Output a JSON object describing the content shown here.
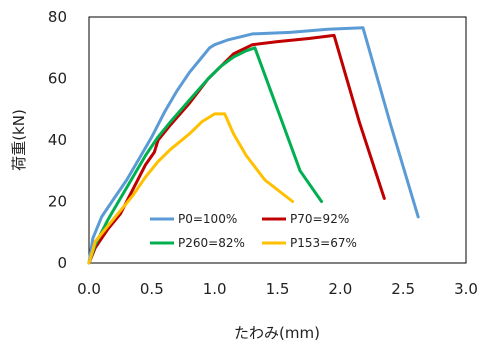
{
  "chart_data": {
    "type": "line",
    "xlabel": "たわみ(mm)",
    "ylabel": "荷重(kN)",
    "xlim": [
      0.0,
      3.0
    ],
    "ylim": [
      0,
      80
    ],
    "x_ticks": [
      "0.0",
      "0.5",
      "1.0",
      "1.5",
      "2.0",
      "2.5",
      "3.0"
    ],
    "y_ticks": [
      "0",
      "20",
      "40",
      "60",
      "80"
    ],
    "grid": false,
    "legend_position": "bottom-center inside plot",
    "series": [
      {
        "name": "P0=100%",
        "color": "#5B9BD5",
        "x": [
          0.0,
          0.03,
          0.1,
          0.2,
          0.3,
          0.4,
          0.5,
          0.6,
          0.7,
          0.8,
          0.9,
          0.96,
          1.0,
          1.1,
          1.3,
          1.6,
          1.9,
          2.18,
          2.4,
          2.62
        ],
        "y": [
          0,
          8,
          15,
          21,
          27,
          34,
          41,
          49,
          56,
          62,
          67,
          70,
          71,
          72.5,
          74.5,
          75,
          76,
          76.5,
          45,
          15
        ]
      },
      {
        "name": "P70=92%",
        "color": "#C00000",
        "x": [
          0.0,
          0.05,
          0.15,
          0.25,
          0.35,
          0.45,
          0.52,
          0.55,
          0.65,
          0.8,
          0.95,
          1.05,
          1.15,
          1.3,
          1.5,
          1.75,
          1.95,
          2.15,
          2.35
        ],
        "y": [
          0,
          5,
          11,
          16,
          24,
          32,
          36,
          40,
          45,
          52,
          60,
          64,
          68,
          71,
          72,
          73,
          74,
          46,
          21
        ]
      },
      {
        "name": "P260=82%",
        "color": "#00B050",
        "x": [
          0.0,
          0.05,
          0.15,
          0.25,
          0.35,
          0.45,
          0.55,
          0.65,
          0.8,
          0.95,
          1.05,
          1.15,
          1.25,
          1.32,
          1.5,
          1.68,
          1.85
        ],
        "y": [
          0,
          6,
          14,
          21,
          28,
          35,
          41,
          46,
          53,
          60,
          64,
          67,
          69,
          70,
          50,
          30,
          20
        ]
      },
      {
        "name": "P153=67%",
        "color": "#FFC000",
        "x": [
          0.0,
          0.05,
          0.15,
          0.25,
          0.35,
          0.45,
          0.55,
          0.65,
          0.8,
          0.9,
          1.0,
          1.08,
          1.15,
          1.25,
          1.4,
          1.62
        ],
        "y": [
          0,
          7,
          12,
          17,
          22,
          28,
          33,
          37,
          42,
          46,
          48.5,
          48.5,
          42,
          35,
          27,
          20
        ]
      }
    ]
  }
}
